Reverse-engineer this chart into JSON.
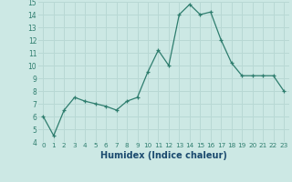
{
  "x": [
    0,
    1,
    2,
    3,
    4,
    5,
    6,
    7,
    8,
    9,
    10,
    11,
    12,
    13,
    14,
    15,
    16,
    17,
    18,
    19,
    20,
    21,
    22,
    23
  ],
  "y": [
    6.0,
    4.5,
    6.5,
    7.5,
    7.2,
    7.0,
    6.8,
    6.5,
    7.2,
    7.5,
    9.5,
    11.2,
    10.0,
    14.0,
    14.8,
    14.0,
    14.2,
    12.0,
    10.2,
    9.2,
    9.2,
    9.2,
    9.2,
    8.0
  ],
  "ylim": [
    4,
    15
  ],
  "yticks": [
    4,
    5,
    6,
    7,
    8,
    9,
    10,
    11,
    12,
    13,
    14,
    15
  ],
  "xticks": [
    0,
    1,
    2,
    3,
    4,
    5,
    6,
    7,
    8,
    9,
    10,
    11,
    12,
    13,
    14,
    15,
    16,
    17,
    18,
    19,
    20,
    21,
    22,
    23
  ],
  "xlabel": "Humidex (Indice chaleur)",
  "line_color": "#2e7d6e",
  "marker": "+",
  "bg_color": "#cce8e4",
  "grid_color": "#b8d8d4",
  "tick_color": "#2e7d6e",
  "label_color": "#1a4a6e"
}
